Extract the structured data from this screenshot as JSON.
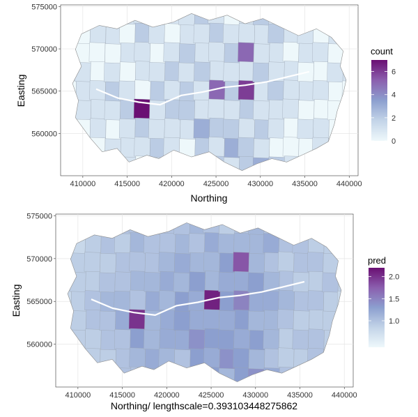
{
  "chart_data": [
    {
      "type": "choropleth",
      "xlabel": "Northing",
      "ylabel": "Easting",
      "xlim": [
        407500,
        441000
      ],
      "ylim": [
        555000,
        575200
      ],
      "x_ticks": [
        {
          "value": 410000,
          "label": "410000"
        },
        {
          "value": 415000,
          "label": "415000"
        },
        {
          "value": 420000,
          "label": "420000"
        },
        {
          "value": 425000,
          "label": "425000"
        },
        {
          "value": 430000,
          "label": "430000"
        },
        {
          "value": 435000,
          "label": "435000"
        },
        {
          "value": 440000,
          "label": "440000"
        }
      ],
      "y_ticks": [
        {
          "value": 560000,
          "label": "560000"
        },
        {
          "value": 565000,
          "label": "565000"
        },
        {
          "value": 570000,
          "label": "570000"
        },
        {
          "value": 575000,
          "label": "575000"
        }
      ],
      "grid": true,
      "legend_position": "right",
      "legend": {
        "title": "count",
        "min": 0,
        "max": 7,
        "ticks": [
          {
            "value": 0,
            "label": "0"
          },
          {
            "value": 2,
            "label": "2"
          },
          {
            "value": 4,
            "label": "4"
          },
          {
            "value": 6,
            "label": "6"
          }
        ]
      },
      "colormap": [
        "#eef8fb",
        "#c3d4e8",
        "#8c9fcf",
        "#8b5fae",
        "#6a0f73"
      ],
      "river_y": [
        565250,
        564200,
        563700,
        563400,
        564500,
        564900,
        565450,
        565700,
        566100,
        566700,
        567300
      ],
      "columns": [
        [
          0,
          0,
          0,
          0,
          0,
          1,
          1,
          0,
          0
        ],
        [
          1,
          0,
          0,
          1,
          1,
          1,
          0,
          1,
          0
        ],
        [
          1,
          1,
          0,
          0,
          1,
          1,
          1,
          0,
          1
        ],
        [
          0,
          1,
          0,
          1,
          2,
          1,
          0,
          1,
          0
        ],
        [
          1,
          0,
          1,
          0,
          1,
          2,
          1,
          1,
          1
        ],
        [
          1,
          2,
          1,
          1,
          0,
          7,
          2,
          1,
          0
        ],
        [
          0,
          1,
          0,
          1,
          2,
          1,
          1,
          2,
          1
        ],
        [
          1,
          0,
          1,
          2,
          1,
          2,
          1,
          1,
          2
        ],
        [
          1,
          1,
          2,
          1,
          2,
          2,
          1,
          0,
          1
        ],
        [
          2,
          1,
          1,
          2,
          1,
          1,
          3,
          2,
          1
        ],
        [
          1,
          2,
          1,
          1,
          5,
          1,
          2,
          1,
          2
        ],
        [
          0,
          1,
          2,
          1,
          2,
          1,
          2,
          3,
          1
        ],
        [
          1,
          1,
          5,
          1,
          6,
          2,
          1,
          2,
          2
        ],
        [
          2,
          1,
          1,
          2,
          1,
          1,
          2,
          1,
          3
        ],
        [
          1,
          2,
          1,
          1,
          2,
          1,
          1,
          0,
          2
        ],
        [
          1,
          1,
          0,
          1,
          1,
          1,
          0,
          0,
          1
        ],
        [
          0,
          1,
          1,
          0,
          1,
          0,
          1,
          0,
          0
        ],
        [
          1,
          0,
          1,
          0,
          1,
          0,
          1,
          1,
          1
        ],
        [
          0,
          1,
          0,
          1,
          0,
          0,
          0,
          1,
          0
        ],
        [
          0,
          0,
          0,
          1,
          0,
          0,
          1,
          0,
          0
        ]
      ]
    },
    {
      "type": "choropleth",
      "xlabel": "Northing/ lengthscale=0.393103448275862",
      "ylabel": "Easting",
      "xlim": [
        407500,
        441000
      ],
      "ylim": [
        555000,
        575200
      ],
      "x_ticks": [
        {
          "value": 410000,
          "label": "410000"
        },
        {
          "value": 415000,
          "label": "415000"
        },
        {
          "value": 420000,
          "label": "420000"
        },
        {
          "value": 425000,
          "label": "425000"
        },
        {
          "value": 430000,
          "label": "430000"
        },
        {
          "value": 435000,
          "label": "435000"
        },
        {
          "value": 440000,
          "label": "440000"
        }
      ],
      "y_ticks": [
        {
          "value": 560000,
          "label": "560000"
        },
        {
          "value": 565000,
          "label": "565000"
        },
        {
          "value": 570000,
          "label": "570000"
        },
        {
          "value": 575000,
          "label": "575000"
        }
      ],
      "grid": true,
      "legend_position": "right",
      "legend": {
        "title": "pred",
        "min": 0.4,
        "max": 2.2,
        "ticks": [
          {
            "value": 1.0,
            "label": "1.0"
          },
          {
            "value": 1.5,
            "label": "1.5"
          },
          {
            "value": 2.0,
            "label": "2.0"
          }
        ]
      },
      "colormap": [
        "#eef8fb",
        "#c3d4e8",
        "#8c9fcf",
        "#8b5fae",
        "#6a0f73"
      ],
      "river_y": [
        565250,
        564200,
        563700,
        563400,
        564500,
        564900,
        565450,
        565700,
        566100,
        566700,
        567300
      ],
      "columns": [
        [
          0.8,
          0.8,
          0.8,
          0.8,
          0.8,
          0.9,
          0.9,
          0.8,
          0.8
        ],
        [
          0.9,
          0.8,
          0.9,
          0.9,
          0.9,
          0.9,
          0.9,
          0.9,
          0.8
        ],
        [
          0.9,
          0.9,
          0.9,
          0.9,
          1.0,
          1.0,
          0.9,
          0.9,
          0.9
        ],
        [
          0.9,
          1.0,
          0.9,
          1.0,
          1.1,
          1.0,
          1.0,
          0.9,
          0.9
        ],
        [
          1.0,
          0.9,
          1.0,
          1.0,
          1.1,
          1.2,
          1.0,
          1.0,
          1.0
        ],
        [
          1.0,
          1.1,
          1.0,
          1.1,
          1.0,
          2.0,
          1.3,
          1.1,
          1.0
        ],
        [
          1.0,
          1.0,
          1.0,
          1.1,
          1.2,
          1.1,
          1.1,
          1.2,
          1.1
        ],
        [
          1.0,
          1.0,
          1.1,
          1.2,
          1.1,
          1.2,
          1.2,
          1.1,
          1.2
        ],
        [
          1.0,
          1.1,
          1.2,
          1.1,
          1.3,
          1.3,
          1.2,
          1.0,
          1.1
        ],
        [
          1.1,
          1.0,
          1.1,
          1.3,
          1.2,
          1.2,
          1.4,
          1.3,
          1.1
        ],
        [
          1.0,
          1.2,
          1.1,
          1.1,
          2.1,
          1.2,
          1.3,
          1.2,
          1.3
        ],
        [
          0.9,
          1.1,
          1.3,
          1.2,
          1.3,
          1.2,
          1.3,
          1.4,
          1.1
        ],
        [
          1.0,
          1.1,
          1.8,
          1.2,
          1.5,
          1.3,
          1.2,
          1.3,
          1.3
        ],
        [
          1.1,
          1.1,
          1.1,
          1.3,
          1.2,
          1.1,
          1.3,
          1.1,
          1.4
        ],
        [
          1.0,
          1.2,
          1.0,
          1.1,
          1.2,
          1.1,
          1.1,
          1.0,
          1.2
        ],
        [
          1.0,
          1.0,
          0.9,
          1.0,
          1.1,
          1.0,
          0.9,
          0.9,
          1.0
        ],
        [
          0.9,
          1.0,
          1.0,
          0.9,
          1.0,
          0.9,
          1.0,
          0.9,
          0.9
        ],
        [
          1.0,
          0.9,
          1.0,
          0.9,
          1.0,
          0.9,
          1.0,
          1.0,
          1.0
        ],
        [
          0.8,
          0.9,
          0.9,
          1.0,
          0.9,
          0.9,
          0.9,
          1.0,
          0.9
        ],
        [
          0.8,
          0.8,
          0.8,
          0.9,
          0.8,
          0.8,
          0.9,
          0.8,
          0.8
        ]
      ]
    }
  ]
}
